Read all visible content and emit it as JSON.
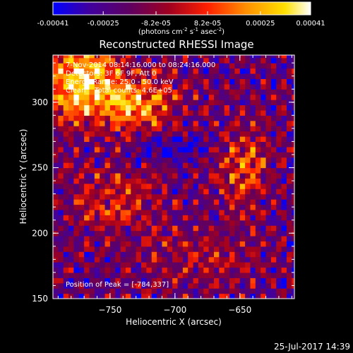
{
  "colorbar": {
    "ticks": [
      "-0.00041",
      "-0.00025",
      "-8.2e-05",
      "8.2e-05",
      "0.00025",
      "0.00041"
    ],
    "tick_values": [
      -0.00041,
      -0.00025,
      -8.2e-05,
      8.2e-05,
      0.00025,
      0.00041
    ],
    "range": [
      -0.00041,
      0.00041
    ],
    "unit": {
      "part1": "(photons cm",
      "sup1": "-2",
      "part2": " s",
      "sup2": "-1",
      "part3": " asec",
      "sup3": "-2",
      "part4": ")"
    },
    "stops": [
      "#0000ff",
      "#4000a0",
      "#600060",
      "#a00020",
      "#ff2000",
      "#ff9000",
      "#ffe000",
      "#ffffff"
    ]
  },
  "chart_data": {
    "type": "heatmap",
    "title": "Reconstructed RHESSI Image",
    "xlabel": "Heliocentric X (arcsec)",
    "ylabel": "Heliocentric Y (arcsec)",
    "xlim": [
      -794,
      -608
    ],
    "ylim": [
      150,
      336
    ],
    "x_ticks": [
      -750,
      -700,
      -650
    ],
    "y_ticks": [
      150,
      200,
      250,
      300
    ],
    "x_tick_labels": [
      "−750",
      "−700",
      "−650"
    ],
    "y_tick_labels": [
      "150",
      "200",
      "250",
      "300"
    ],
    "annotations": [
      "7-Nov-2014 08:14:16.000 to 08:24:16.000",
      "Detectors: 3F 6F 9F, Att 0",
      "Energy Range: 25.0 - 50.0 keV",
      "Clean    Total counts: 4.6E+05"
    ],
    "peak_label": "Position of Peak = [-784,337]",
    "peak": [
      -784,
      337
    ]
  },
  "footer": {
    "timestamp": "25-Jul-2017 14:39"
  }
}
